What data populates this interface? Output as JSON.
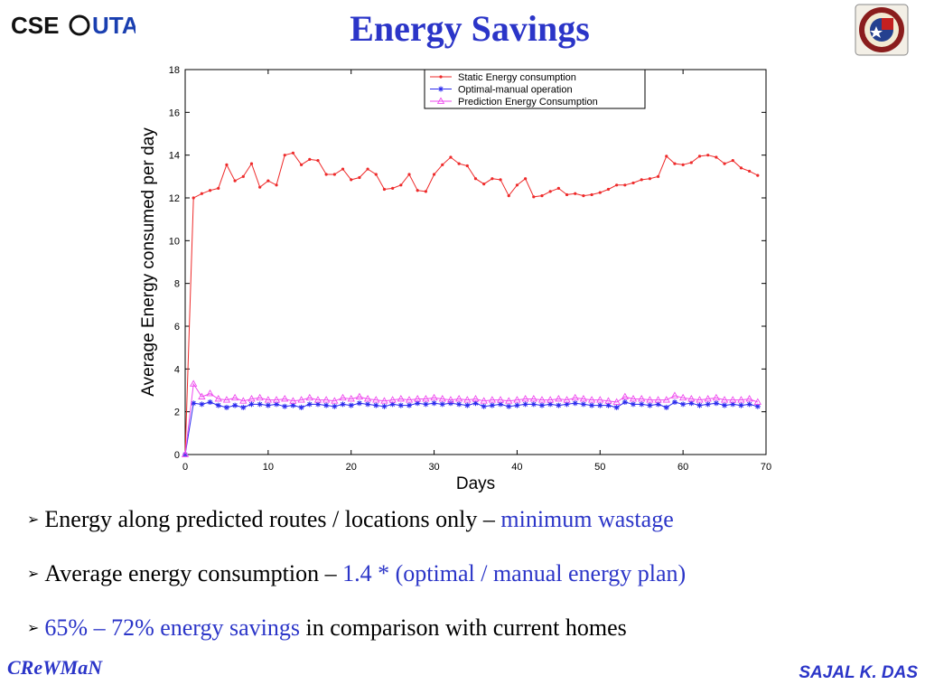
{
  "slide": {
    "title": "Energy Savings",
    "logo_text": "CSE@UTA",
    "bullets": [
      {
        "parts": [
          {
            "text": "Energy along predicted routes / locations only – ",
            "color": "black"
          },
          {
            "text": "minimum wastage",
            "color": "blue"
          }
        ]
      },
      {
        "parts": [
          {
            "text": "Average energy consumption – ",
            "color": "black"
          },
          {
            "text": "1.4 * (optimal / manual energy plan)",
            "color": "blue"
          }
        ]
      },
      {
        "parts": [
          {
            "text": "65% – 72% energy savings",
            "color": "blue"
          },
          {
            "text": " in comparison with current homes",
            "color": "black"
          }
        ]
      }
    ],
    "footer_left": "CReWMaN",
    "footer_right": "SAJAL K. DAS"
  },
  "colors": {
    "title": "#2b35c8",
    "static": "#ee2a2a",
    "optimal": "#2a2aee",
    "prediction": "#ee4aee"
  },
  "icons": {
    "arrow": "arrowhead-bullet-icon",
    "seal": "university-seal-icon"
  },
  "chart_data": {
    "type": "line",
    "xlabel": "Days",
    "ylabel": "Average Energy consumed per day",
    "xlim": [
      0,
      70
    ],
    "ylim": [
      0,
      18
    ],
    "xticks": [
      0,
      10,
      20,
      30,
      40,
      50,
      60,
      70
    ],
    "yticks": [
      0,
      2,
      4,
      6,
      8,
      10,
      12,
      14,
      16,
      18
    ],
    "grid": false,
    "legend_position": "top-right",
    "x": [
      0,
      1,
      2,
      3,
      4,
      5,
      6,
      7,
      8,
      9,
      10,
      11,
      12,
      13,
      14,
      15,
      16,
      17,
      18,
      19,
      20,
      21,
      22,
      23,
      24,
      25,
      26,
      27,
      28,
      29,
      30,
      31,
      32,
      33,
      34,
      35,
      36,
      37,
      38,
      39,
      40,
      41,
      42,
      43,
      44,
      45,
      46,
      47,
      48,
      49,
      50,
      51,
      52,
      53,
      54,
      55,
      56,
      57,
      58,
      59,
      60,
      61,
      62,
      63,
      64,
      65,
      66,
      67,
      68,
      69
    ],
    "series": [
      {
        "name": "Static Energy consumption",
        "marker": "dot",
        "values": [
          0,
          12.0,
          12.2,
          12.35,
          12.45,
          13.55,
          12.8,
          13.0,
          13.6,
          12.5,
          12.8,
          12.6,
          14.0,
          14.1,
          13.55,
          13.8,
          13.75,
          13.1,
          13.1,
          13.35,
          12.85,
          12.95,
          13.35,
          13.1,
          12.4,
          12.45,
          12.6,
          13.1,
          12.35,
          12.3,
          13.1,
          13.55,
          13.9,
          13.6,
          13.5,
          12.9,
          12.65,
          12.9,
          12.85,
          12.1,
          12.6,
          12.9,
          12.05,
          12.1,
          12.3,
          12.45,
          12.15,
          12.2,
          12.1,
          12.15,
          12.25,
          12.4,
          12.6,
          12.6,
          12.7,
          12.85,
          12.9,
          13.0,
          13.95,
          13.6,
          13.55,
          13.65,
          13.95,
          14.0,
          13.9,
          13.6,
          13.75,
          13.4,
          13.25,
          13.05
        ]
      },
      {
        "name": "Optimal-manual operation",
        "marker": "star",
        "values": [
          0,
          2.4,
          2.35,
          2.45,
          2.3,
          2.2,
          2.3,
          2.2,
          2.35,
          2.35,
          2.3,
          2.35,
          2.25,
          2.3,
          2.2,
          2.35,
          2.35,
          2.3,
          2.25,
          2.35,
          2.3,
          2.4,
          2.35,
          2.3,
          2.25,
          2.35,
          2.3,
          2.3,
          2.4,
          2.35,
          2.4,
          2.35,
          2.4,
          2.35,
          2.3,
          2.4,
          2.25,
          2.3,
          2.35,
          2.25,
          2.3,
          2.35,
          2.35,
          2.3,
          2.35,
          2.3,
          2.35,
          2.4,
          2.35,
          2.3,
          2.3,
          2.3,
          2.2,
          2.45,
          2.35,
          2.35,
          2.3,
          2.35,
          2.2,
          2.45,
          2.35,
          2.4,
          2.3,
          2.35,
          2.4,
          2.3,
          2.35,
          2.3,
          2.35,
          2.25
        ]
      },
      {
        "name": "Prediction Energy Consumption",
        "marker": "triangle",
        "values": [
          0,
          3.3,
          2.7,
          2.85,
          2.6,
          2.55,
          2.65,
          2.5,
          2.6,
          2.65,
          2.55,
          2.55,
          2.6,
          2.5,
          2.55,
          2.65,
          2.55,
          2.55,
          2.5,
          2.65,
          2.6,
          2.7,
          2.6,
          2.55,
          2.5,
          2.55,
          2.6,
          2.55,
          2.6,
          2.6,
          2.65,
          2.6,
          2.55,
          2.6,
          2.55,
          2.6,
          2.5,
          2.55,
          2.55,
          2.5,
          2.55,
          2.6,
          2.6,
          2.55,
          2.55,
          2.6,
          2.55,
          2.65,
          2.6,
          2.55,
          2.55,
          2.5,
          2.45,
          2.7,
          2.6,
          2.6,
          2.55,
          2.55,
          2.55,
          2.75,
          2.65,
          2.6,
          2.55,
          2.6,
          2.65,
          2.55,
          2.55,
          2.55,
          2.6,
          2.45
        ]
      }
    ]
  }
}
